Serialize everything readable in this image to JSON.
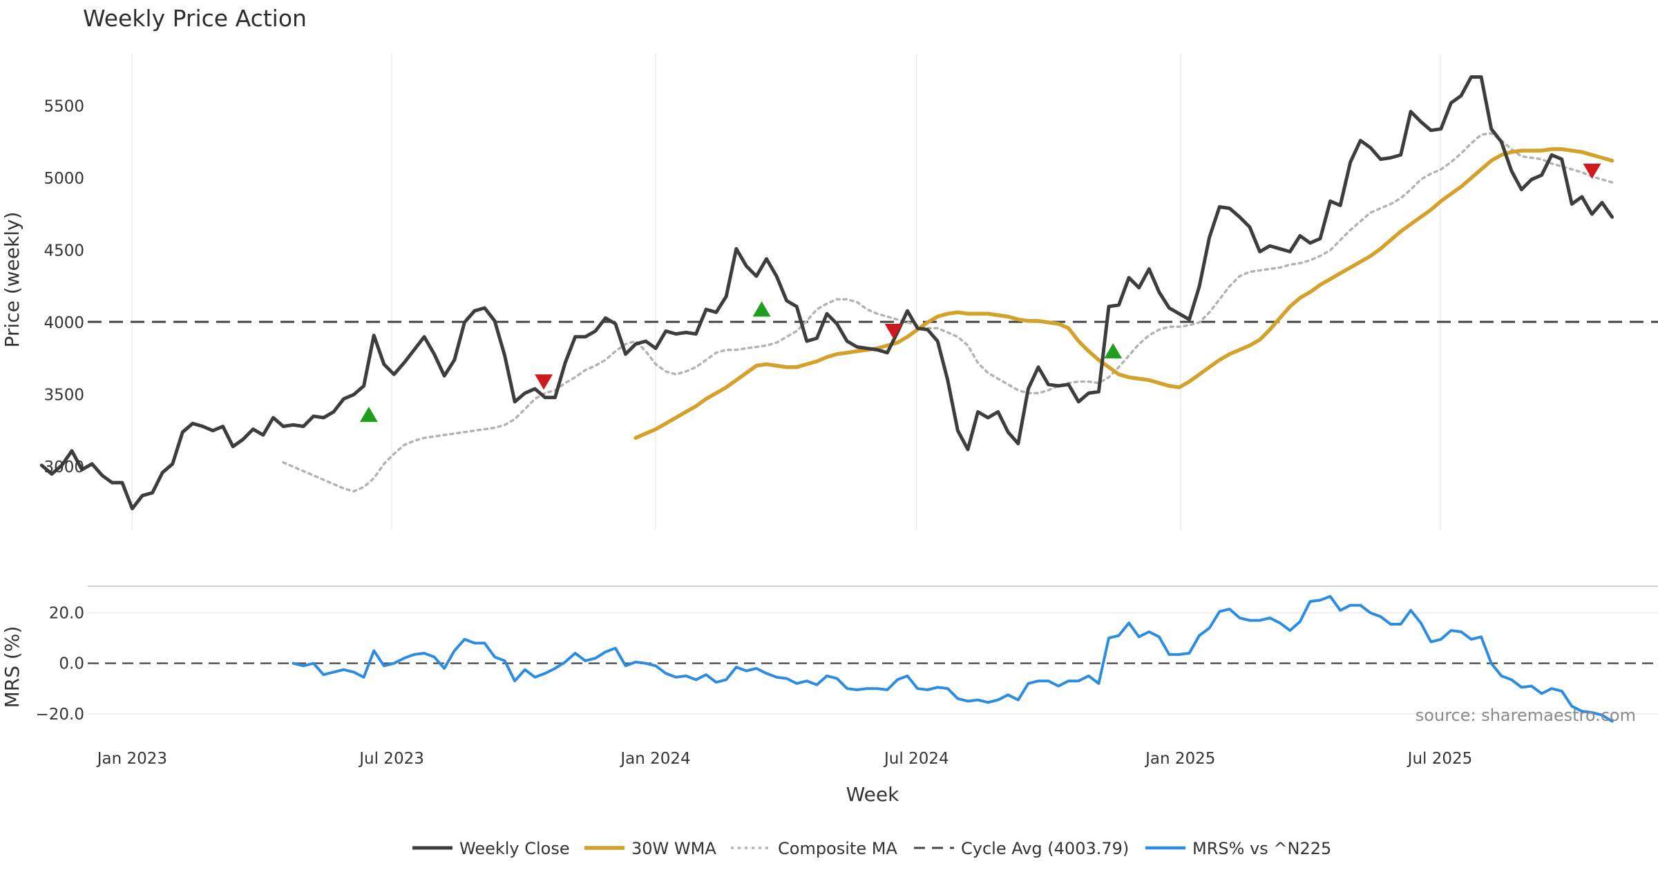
{
  "chart_data": {
    "type": "line",
    "title": "Weekly Price Action",
    "xlabel": "Week",
    "x_ticks": [
      "Jan 2023",
      "Jul 2023",
      "Jan 2024",
      "Jul 2024",
      "Jan 2025",
      "Jul 2025"
    ],
    "top_panel": {
      "ylabel": "Price (weekly)",
      "ylim": [
        2560,
        5860
      ],
      "y_ticks": [
        3000,
        3500,
        4000,
        4500,
        5000,
        5500
      ],
      "grid": true,
      "series": [
        {
          "name": "Weekly Close",
          "color": "#3d3d3d",
          "style": "solid",
          "values": [
            3010,
            2950,
            3010,
            3110,
            2980,
            3020,
            2940,
            2890,
            2890,
            2710,
            2800,
            2820,
            2960,
            3020,
            3240,
            3300,
            3280,
            3250,
            3280,
            3140,
            3190,
            3260,
            3220,
            3340,
            3280,
            3290,
            3280,
            3350,
            3340,
            3380,
            3470,
            3500,
            3560,
            3910,
            3710,
            3640,
            3720,
            3810,
            3900,
            3780,
            3630,
            3740,
            4000,
            4080,
            4100,
            4010,
            3770,
            3450,
            3510,
            3540,
            3480,
            3480,
            3720,
            3900,
            3900,
            3940,
            4030,
            3990,
            3780,
            3850,
            3870,
            3820,
            3940,
            3920,
            3930,
            3920,
            4090,
            4070,
            4180,
            4510,
            4390,
            4320,
            4440,
            4320,
            4150,
            4110,
            3870,
            3890,
            4060,
            3990,
            3870,
            3830,
            3820,
            3810,
            3790,
            3930,
            4080,
            3960,
            3950,
            3870,
            3600,
            3250,
            3120,
            3380,
            3340,
            3380,
            3240,
            3160,
            3540,
            3690,
            3570,
            3560,
            3570,
            3450,
            3510,
            3520,
            4110,
            4120,
            4310,
            4240,
            4370,
            4210,
            4100,
            4060,
            4020,
            4250,
            4590,
            4800,
            4790,
            4730,
            4660,
            4490,
            4530,
            4510,
            4490,
            4600,
            4550,
            4580,
            4840,
            4810,
            5110,
            5260,
            5210,
            5130,
            5140,
            5160,
            5460,
            5390,
            5330,
            5340,
            5520,
            5570,
            5700,
            5700,
            5340,
            5250,
            5050,
            4920,
            4990,
            5020,
            5160,
            5130,
            4820,
            4870,
            4750,
            4830,
            4730
          ]
        },
        {
          "name": "30W WMA",
          "color": "#d4a22a",
          "style": "solid",
          "values": [
            3200,
            3230,
            3260,
            3300,
            3340,
            3380,
            3420,
            3470,
            3510,
            3550,
            3600,
            3650,
            3700,
            3710,
            3700,
            3690,
            3690,
            3710,
            3730,
            3760,
            3780,
            3790,
            3800,
            3810,
            3820,
            3840,
            3860,
            3900,
            3950,
            4000,
            4040,
            4060,
            4070,
            4060,
            4060,
            4060,
            4050,
            4040,
            4020,
            4010,
            4010,
            4000,
            3990,
            3960,
            3870,
            3800,
            3740,
            3690,
            3640,
            3620,
            3610,
            3600,
            3580,
            3560,
            3550,
            3590,
            3640,
            3690,
            3740,
            3780,
            3810,
            3840,
            3880,
            3950,
            4030,
            4110,
            4170,
            4210,
            4260,
            4300,
            4340,
            4380,
            4420,
            4460,
            4510,
            4570,
            4630,
            4680,
            4730,
            4780,
            4840,
            4890,
            4940,
            5000,
            5060,
            5120,
            5160,
            5180,
            5190,
            5190,
            5190,
            5200,
            5200,
            5190,
            5180,
            5160,
            5140,
            5120
          ]
        },
        {
          "name": "Composite MA",
          "color": "#b3b3b3",
          "style": "dotted",
          "values": [
            3030,
            3000,
            2970,
            2940,
            2910,
            2880,
            2850,
            2830,
            2860,
            2920,
            3020,
            3090,
            3150,
            3180,
            3200,
            3210,
            3220,
            3230,
            3240,
            3250,
            3260,
            3270,
            3290,
            3330,
            3400,
            3470,
            3510,
            3530,
            3580,
            3620,
            3670,
            3700,
            3740,
            3800,
            3850,
            3870,
            3800,
            3710,
            3660,
            3640,
            3660,
            3690,
            3740,
            3790,
            3810,
            3810,
            3820,
            3830,
            3840,
            3860,
            3900,
            3940,
            4010,
            4090,
            4130,
            4160,
            4160,
            4140,
            4090,
            4060,
            4040,
            4020,
            4000,
            3980,
            3960,
            3960,
            3930,
            3900,
            3840,
            3720,
            3650,
            3610,
            3570,
            3530,
            3510,
            3510,
            3530,
            3560,
            3580,
            3590,
            3590,
            3580,
            3620,
            3690,
            3770,
            3850,
            3910,
            3950,
            3970,
            3970,
            3980,
            4000,
            4070,
            4160,
            4250,
            4320,
            4350,
            4360,
            4370,
            4380,
            4400,
            4410,
            4430,
            4460,
            4500,
            4570,
            4640,
            4700,
            4760,
            4790,
            4820,
            4860,
            4920,
            4990,
            5030,
            5060,
            5110,
            5170,
            5240,
            5300,
            5310,
            5260,
            5200,
            5150,
            5140,
            5130,
            5100,
            5080,
            5060,
            5040,
            5010,
            4990,
            4970
          ]
        },
        {
          "name": "Cycle Avg (4003.79)",
          "color": "#444444",
          "style": "dashed",
          "value": 4003.79
        }
      ],
      "markers": [
        {
          "type": "buy",
          "date": "2023-06",
          "value": 3360,
          "color": "#1f9e1f"
        },
        {
          "type": "sell",
          "date": "2023-10",
          "value": 3590,
          "color": "#d0191e"
        },
        {
          "type": "buy",
          "date": "2024-03",
          "value": 4090,
          "color": "#1f9e1f"
        },
        {
          "type": "sell",
          "date": "2024-06",
          "value": 3940,
          "color": "#d0191e"
        },
        {
          "type": "buy",
          "date": "2024-11",
          "value": 3800,
          "color": "#1f9e1f"
        },
        {
          "type": "sell",
          "date": "2025-10",
          "value": 5050,
          "color": "#d0191e"
        }
      ]
    },
    "bottom_panel": {
      "ylabel": "MRS (%)",
      "ylim": [
        -28,
        30
      ],
      "y_ticks": [
        20,
        0,
        -20
      ],
      "y_tick_labels": [
        "20.0",
        "0.0",
        "−20.0"
      ],
      "zero_line": "dashed",
      "series": [
        {
          "name": "MRS% vs ^N225",
          "color": "#2b8ce0",
          "style": "solid",
          "values": [
            0,
            -1,
            0,
            -4.5,
            -3.5,
            -2.5,
            -3.5,
            -5.5,
            5,
            -1,
            0,
            2,
            3.5,
            4,
            2.5,
            -2,
            5,
            9.5,
            8,
            8,
            2.5,
            1,
            -7,
            -2.5,
            -5.5,
            -4,
            -2,
            0.5,
            4,
            1,
            2,
            4.5,
            6,
            -1,
            0.5,
            0,
            -1,
            -4,
            -5.5,
            -5,
            -6.5,
            -4.5,
            -7.5,
            -6.5,
            -1.5,
            -3,
            -2,
            -4,
            -5.5,
            -6,
            -8,
            -7,
            -8.5,
            -5,
            -6,
            -10,
            -10.5,
            -10,
            -10,
            -10.5,
            -6.5,
            -5,
            -10,
            -10.5,
            -9.5,
            -10,
            -14,
            -15,
            -14.5,
            -15.5,
            -14.5,
            -12.5,
            -14.5,
            -8,
            -7,
            -7,
            -9,
            -7,
            -7,
            -5,
            -8,
            10,
            11,
            16,
            10.5,
            12.5,
            10.5,
            3.5,
            3.5,
            4,
            11,
            14,
            20.5,
            21.5,
            18,
            17,
            17,
            18,
            16,
            13,
            16.5,
            24.5,
            25,
            26.5,
            21,
            23,
            23,
            20,
            18.5,
            15.5,
            15.5,
            21,
            16,
            8.5,
            9.5,
            13,
            12.5,
            9.5,
            10.5,
            0,
            -5,
            -6.5,
            -9.5,
            -9,
            -12,
            -10,
            -11,
            -17,
            -19,
            -19.5,
            -20.5,
            -23
          ]
        }
      ]
    },
    "legend": [
      "Weekly Close",
      "30W WMA",
      "Composite MA",
      "Cycle Avg (4003.79)",
      "MRS% vs ^N225"
    ],
    "legend_position": "bottom-center",
    "annotation": "source: sharemaestro.com"
  }
}
